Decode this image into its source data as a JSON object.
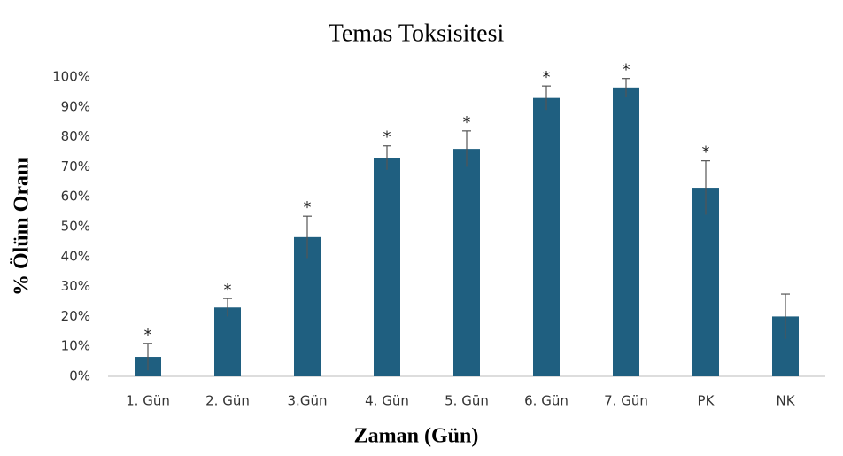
{
  "chart_data": {
    "type": "bar",
    "title": "Temas Toksisitesi",
    "x_label": "Zaman (Gün)",
    "y_label": "% Ölüm Oranı",
    "categories": [
      "1. Gün",
      "2. Gün",
      "3.Gün",
      "4. Gün",
      "5. Gün",
      "6. Gün",
      "7. Gün",
      "PK",
      "NK"
    ],
    "values": [
      6.5,
      23,
      46.5,
      73,
      76,
      93,
      96.5,
      63,
      20
    ],
    "errors": [
      4.5,
      3,
      7,
      4,
      6,
      4,
      3,
      9,
      7.5
    ],
    "annotations": [
      "*",
      "*",
      "*",
      "*",
      "*",
      "*",
      "*",
      "*",
      null
    ],
    "color": "#1f5f80",
    "ylim": [
      0,
      100
    ],
    "yticks": [
      {
        "value": 0,
        "label": "0%"
      },
      {
        "value": 10,
        "label": "10%"
      },
      {
        "value": 20,
        "label": "20%"
      },
      {
        "value": 30,
        "label": "30%"
      },
      {
        "value": 40,
        "label": "40%"
      },
      {
        "value": 50,
        "label": "50%"
      },
      {
        "value": 60,
        "label": "60%"
      },
      {
        "value": 70,
        "label": "70%"
      },
      {
        "value": 80,
        "label": "80%"
      },
      {
        "value": 90,
        "label": "90%"
      },
      {
        "value": 100,
        "label": "100%"
      }
    ],
    "grid": false
  }
}
